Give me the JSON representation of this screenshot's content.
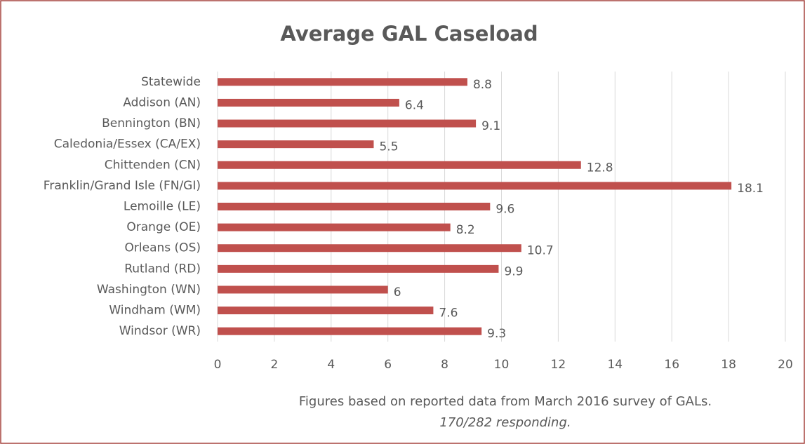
{
  "chart_data": {
    "type": "bar",
    "orientation": "horizontal",
    "title": "Average GAL Caseload",
    "categories": [
      "Statewide",
      "Addison (AN)",
      "Bennington (BN)",
      "Caledonia/Essex (CA/EX)",
      "Chittenden (CN)",
      "Franklin/Grand Isle (FN/GI)",
      "Lemoille (LE)",
      "Orange (OE)",
      "Orleans (OS)",
      "Rutland (RD)",
      "Washington (WN)",
      "Windham (WM)",
      "Windsor (WR)"
    ],
    "values": [
      8.8,
      6.4,
      9.1,
      5.5,
      12.8,
      18.1,
      9.6,
      8.2,
      10.7,
      9.9,
      6,
      7.6,
      9.3
    ],
    "color": "#c0504d",
    "xlim": [
      0,
      20
    ],
    "xticks": [
      0,
      2,
      4,
      6,
      8,
      10,
      12,
      14,
      16,
      18,
      20
    ],
    "grid": true,
    "notes": [
      "Figures based on reported data from March 2016 survey of GALs.",
      "170/282 responding."
    ]
  }
}
